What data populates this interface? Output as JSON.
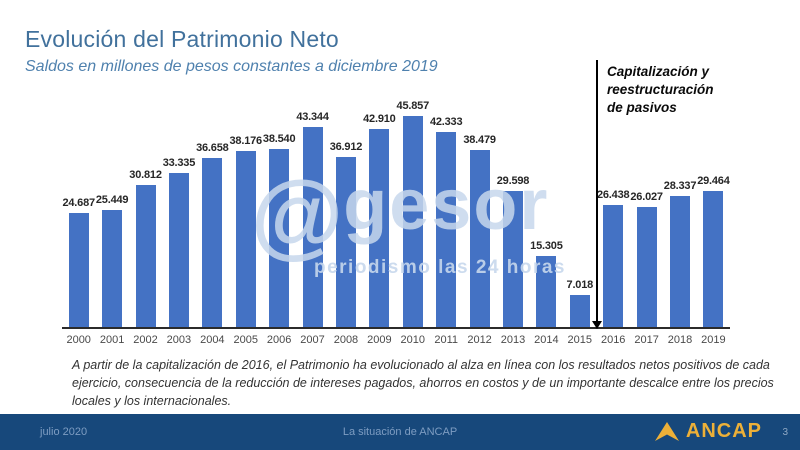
{
  "slide": {
    "title": "Evolución del Patrimonio Neto",
    "subtitle": "Saldos en millones de pesos constantes a diciembre 2019",
    "annotation": "Capitalización y reestructuración de pasivos",
    "body_text": "A partir de la capitalización de 2016, el Patrimonio ha evolucionado al alza en línea con los resultados netos positivos de cada ejercicio, consecuencia de la reducción de intereses pagados, ahorros en costos y de un importante descalce entre los precios locales y los internacionales.",
    "watermark": {
      "at": "@",
      "name": "gesor",
      "sub": "periodismo las 24 horas"
    },
    "footer": {
      "date": "julio 2020",
      "center_text": "La situación de ANCAP",
      "logo_text": "ANCAP",
      "page_number": "3"
    }
  },
  "chart_data": {
    "type": "bar",
    "title": "Evolución del Patrimonio Neto",
    "subtitle": "Saldos en millones de pesos constantes a diciembre 2019",
    "xlabel": "",
    "ylabel": "millones de pesos constantes a diciembre 2019",
    "categories": [
      "2000",
      "2001",
      "2002",
      "2003",
      "2004",
      "2005",
      "2006",
      "2007",
      "2008",
      "2009",
      "2010",
      "2011",
      "2012",
      "2013",
      "2014",
      "2015",
      "2016",
      "2017",
      "2018",
      "2019"
    ],
    "values": [
      24687,
      25449,
      30812,
      33335,
      36658,
      38176,
      38540,
      43344,
      36912,
      42910,
      45857,
      42333,
      38479,
      29598,
      15305,
      7018,
      26438,
      26027,
      28337,
      29464
    ],
    "labels": [
      "24.687",
      "25.449",
      "30.812",
      "33.335",
      "36.658",
      "38.176",
      "38.540",
      "43.344",
      "36.912",
      "42.910",
      "45.857",
      "42.333",
      "38.479",
      "29.598",
      "15.305",
      "7.018",
      "26.438",
      "26.027",
      "28.337",
      "29.464"
    ],
    "ylim": [
      0,
      46000
    ],
    "grid": false,
    "legend": false,
    "bar_color": "#4472C4",
    "annotation": {
      "text": "Capitalización y reestructuración de pasivos",
      "position_between": [
        "2015",
        "2016"
      ]
    }
  },
  "colors": {
    "bar": "#4472C4",
    "title": "#41719C",
    "subtitle": "#4F81AE",
    "footer_bar": "#17487B",
    "footer_text": "#7E9DC2",
    "logo_gold": "#EDB038",
    "axis": "#2b2b2b",
    "annotation_text": "#0a0a0a"
  }
}
